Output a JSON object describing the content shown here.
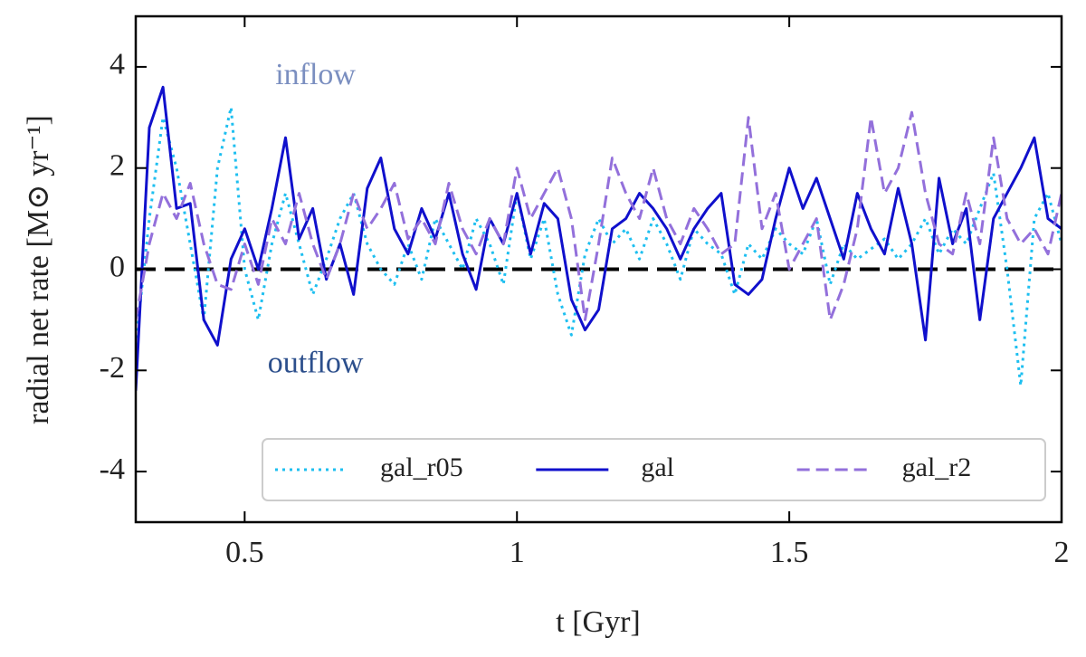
{
  "chart_data": {
    "type": "line",
    "xlabel": "t [Gyr]",
    "ylabel": "radial net rate [M⊙ yr⁻¹]",
    "annotations": [
      {
        "text": "inflow",
        "x": 0.63,
        "y": 3.8,
        "color": "#7b8fc0"
      },
      {
        "text": "outflow",
        "x": 0.63,
        "y": -1.9,
        "color": "#2c4f8c"
      }
    ],
    "hline": 0,
    "x": [
      0.3,
      0.325,
      0.35,
      0.375,
      0.4,
      0.425,
      0.45,
      0.475,
      0.5,
      0.525,
      0.55,
      0.575,
      0.6,
      0.625,
      0.65,
      0.675,
      0.7,
      0.725,
      0.75,
      0.775,
      0.8,
      0.825,
      0.85,
      0.875,
      0.9,
      0.925,
      0.95,
      0.975,
      1.0,
      1.025,
      1.05,
      1.075,
      1.1,
      1.125,
      1.15,
      1.175,
      1.2,
      1.225,
      1.25,
      1.275,
      1.3,
      1.325,
      1.35,
      1.375,
      1.4,
      1.425,
      1.45,
      1.475,
      1.5,
      1.525,
      1.55,
      1.575,
      1.6,
      1.625,
      1.65,
      1.675,
      1.7,
      1.725,
      1.75,
      1.775,
      1.8,
      1.825,
      1.85,
      1.875,
      1.9,
      1.925,
      1.95,
      1.975,
      2.0
    ],
    "series": [
      {
        "name": "gal_r05",
        "color": "#1ebff0",
        "linestyle": "dotted",
        "values": [
          -1.5,
          1.0,
          3.0,
          2.0,
          0.5,
          -1.0,
          2.0,
          3.2,
          0.0,
          -1.0,
          0.5,
          1.5,
          0.5,
          -0.5,
          0.2,
          1.0,
          1.5,
          0.5,
          0.0,
          -0.3,
          0.5,
          -0.2,
          1.0,
          0.5,
          0.0,
          1.0,
          0.5,
          -0.3,
          1.5,
          0.2,
          1.0,
          -0.5,
          -1.3,
          0.3,
          1.0,
          0.5,
          0.8,
          0.2,
          1.0,
          0.5,
          -0.2,
          0.8,
          0.5,
          0.3,
          -0.5,
          0.5,
          0.2,
          0.8,
          0.5,
          0.3,
          1.0,
          -0.3,
          0.5,
          0.2,
          0.4,
          0.6,
          0.2,
          0.5,
          1.0,
          0.3,
          0.8,
          0.5,
          1.2,
          1.9,
          0.0,
          -2.3,
          1.0,
          1.5,
          0.5
        ]
      },
      {
        "name": "gal",
        "color": "#1010cc",
        "linestyle": "solid",
        "values": [
          -2.4,
          2.8,
          3.6,
          1.2,
          1.3,
          -1.0,
          -1.5,
          0.2,
          0.8,
          0.0,
          1.2,
          2.6,
          0.6,
          1.2,
          -0.2,
          0.5,
          -0.5,
          1.6,
          2.2,
          0.8,
          0.3,
          1.2,
          0.6,
          1.5,
          0.3,
          -0.4,
          1.0,
          0.5,
          1.5,
          0.3,
          1.3,
          1.0,
          -0.6,
          -1.2,
          -0.8,
          0.8,
          1.0,
          1.5,
          1.2,
          0.8,
          0.2,
          0.8,
          1.2,
          1.5,
          -0.3,
          -0.5,
          -0.2,
          1.0,
          2.0,
          1.2,
          1.8,
          1.0,
          0.2,
          1.5,
          0.8,
          0.3,
          1.6,
          0.5,
          -1.4,
          1.8,
          0.5,
          1.2,
          -1.0,
          1.0,
          1.5,
          2.0,
          2.6,
          1.0,
          0.8
        ]
      },
      {
        "name": "gal_r2",
        "color": "#9370db",
        "linestyle": "dashed",
        "values": [
          -1.0,
          0.5,
          1.5,
          1.0,
          1.7,
          0.5,
          -0.3,
          -0.4,
          0.5,
          -0.3,
          1.0,
          0.5,
          1.5,
          0.5,
          -0.2,
          0.5,
          1.5,
          0.8,
          1.2,
          1.7,
          0.6,
          1.0,
          0.5,
          1.7,
          0.8,
          0.3,
          1.0,
          0.5,
          2.0,
          1.0,
          1.5,
          2.0,
          1.0,
          -1.0,
          0.5,
          2.2,
          1.5,
          1.0,
          2.0,
          1.0,
          0.5,
          1.2,
          0.8,
          0.3,
          0.5,
          3.0,
          0.8,
          1.5,
          0.0,
          0.5,
          1.0,
          -1.0,
          -0.3,
          0.8,
          3.0,
          1.5,
          2.0,
          3.1,
          1.5,
          0.5,
          0.3,
          1.5,
          0.5,
          2.6,
          1.0,
          0.5,
          0.8,
          0.3,
          1.5
        ]
      }
    ],
    "xlim": [
      0.3,
      2
    ],
    "xticks": [
      0.5,
      1,
      1.5,
      2
    ],
    "ylim": [
      -5,
      5
    ],
    "yticks": [
      -4,
      -2,
      0,
      2,
      4
    ],
    "legend": "lower right"
  }
}
